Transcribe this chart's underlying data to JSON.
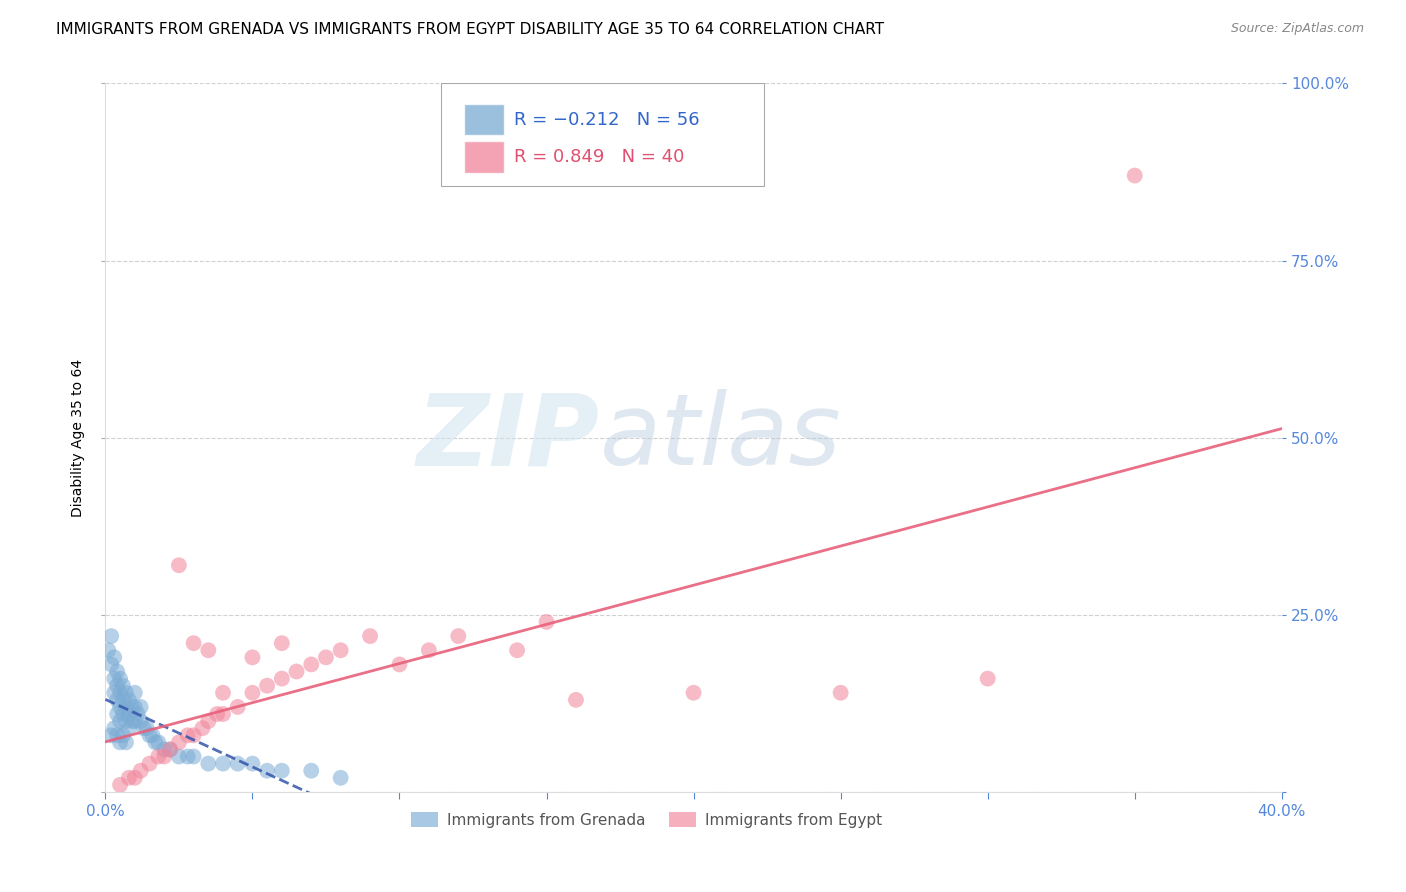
{
  "title": "IMMIGRANTS FROM GRENADA VS IMMIGRANTS FROM EGYPT DISABILITY AGE 35 TO 64 CORRELATION CHART",
  "source": "Source: ZipAtlas.com",
  "ylabel": "Disability Age 35 to 64",
  "xlim": [
    0.0,
    0.4
  ],
  "ylim": [
    0.0,
    1.0
  ],
  "xticks": [
    0.0,
    0.05,
    0.1,
    0.15,
    0.2,
    0.25,
    0.3,
    0.35,
    0.4
  ],
  "xticklabels": [
    "0.0%",
    "",
    "",
    "",
    "",
    "",
    "",
    "",
    "40.0%"
  ],
  "yticks": [
    0.0,
    0.25,
    0.5,
    0.75,
    1.0
  ],
  "right_yticklabels": [
    "",
    "25.0%",
    "50.0%",
    "75.0%",
    "100.0%"
  ],
  "grenada_R": -0.212,
  "grenada_N": 56,
  "egypt_R": 0.849,
  "egypt_N": 40,
  "grenada_color": "#7aabd4",
  "egypt_color": "#f0849a",
  "grenada_line_color": "#3355aa",
  "egypt_line_color": "#e8607a",
  "background_color": "#ffffff",
  "grid_color": "#cccccc",
  "watermark_zip": "ZIP",
  "watermark_atlas": "atlas",
  "legend_label_blue": "R = −0.212   N = 56",
  "legend_label_pink": "R = 0.849   N = 40",
  "bottom_legend_blue": "Immigrants from Grenada",
  "bottom_legend_pink": "Immigrants from Egypt",
  "title_fontsize": 11,
  "axis_label_fontsize": 10,
  "tick_fontsize": 11,
  "legend_fontsize": 13,
  "grenada_x": [
    0.001,
    0.002,
    0.002,
    0.003,
    0.003,
    0.003,
    0.004,
    0.004,
    0.004,
    0.004,
    0.005,
    0.005,
    0.005,
    0.005,
    0.006,
    0.006,
    0.006,
    0.007,
    0.007,
    0.007,
    0.008,
    0.008,
    0.008,
    0.009,
    0.009,
    0.01,
    0.01,
    0.01,
    0.011,
    0.012,
    0.012,
    0.013,
    0.014,
    0.015,
    0.016,
    0.017,
    0.018,
    0.02,
    0.022,
    0.025,
    0.028,
    0.03,
    0.035,
    0.04,
    0.045,
    0.05,
    0.055,
    0.06,
    0.07,
    0.08,
    0.002,
    0.003,
    0.004,
    0.005,
    0.006,
    0.007
  ],
  "grenada_y": [
    0.2,
    0.22,
    0.18,
    0.19,
    0.16,
    0.14,
    0.17,
    0.15,
    0.13,
    0.11,
    0.16,
    0.14,
    0.12,
    0.1,
    0.15,
    0.13,
    0.11,
    0.14,
    0.12,
    0.1,
    0.13,
    0.11,
    0.09,
    0.12,
    0.1,
    0.14,
    0.12,
    0.1,
    0.11,
    0.12,
    0.1,
    0.09,
    0.09,
    0.08,
    0.08,
    0.07,
    0.07,
    0.06,
    0.06,
    0.05,
    0.05,
    0.05,
    0.04,
    0.04,
    0.04,
    0.04,
    0.03,
    0.03,
    0.03,
    0.02,
    0.08,
    0.09,
    0.08,
    0.07,
    0.08,
    0.07
  ],
  "egypt_x": [
    0.005,
    0.008,
    0.01,
    0.012,
    0.015,
    0.018,
    0.02,
    0.022,
    0.025,
    0.028,
    0.03,
    0.033,
    0.035,
    0.038,
    0.04,
    0.045,
    0.05,
    0.055,
    0.06,
    0.065,
    0.07,
    0.075,
    0.08,
    0.09,
    0.1,
    0.11,
    0.12,
    0.14,
    0.15,
    0.16,
    0.025,
    0.03,
    0.035,
    0.04,
    0.05,
    0.06,
    0.2,
    0.25,
    0.3,
    0.35
  ],
  "egypt_y": [
    0.01,
    0.02,
    0.02,
    0.03,
    0.04,
    0.05,
    0.05,
    0.06,
    0.07,
    0.08,
    0.08,
    0.09,
    0.1,
    0.11,
    0.11,
    0.12,
    0.14,
    0.15,
    0.16,
    0.17,
    0.18,
    0.19,
    0.2,
    0.22,
    0.18,
    0.2,
    0.22,
    0.2,
    0.24,
    0.13,
    0.32,
    0.21,
    0.2,
    0.14,
    0.19,
    0.21,
    0.14,
    0.14,
    0.16,
    0.87
  ]
}
